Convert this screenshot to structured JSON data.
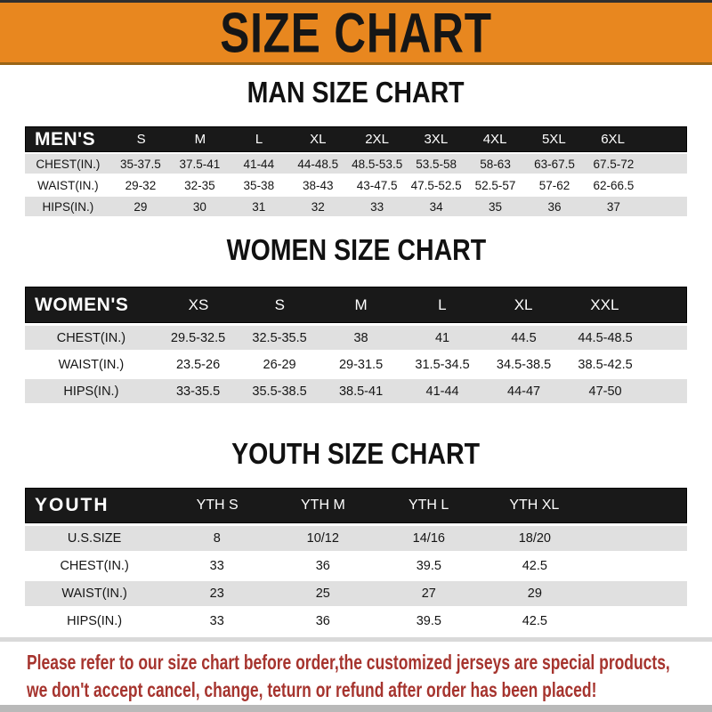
{
  "banner": {
    "title": "SIZE CHART"
  },
  "colors": {
    "banner_orange": "#E8871F",
    "table_bar_black": "#191919",
    "row_gray": "#E0E0E0",
    "footer_red": "#A6342E"
  },
  "men": {
    "title": "MAN SIZE CHART",
    "header": "MEN'S",
    "cols": [
      "S",
      "M",
      "L",
      "XL",
      "2XL",
      "3XL",
      "4XL",
      "5XL",
      "6XL"
    ],
    "chest": {
      "label": "CHEST(IN.)",
      "v": [
        "35-37.5",
        "37.5-41",
        "41-44",
        "44-48.5",
        "48.5-53.5",
        "53.5-58",
        "58-63",
        "63-67.5",
        "67.5-72"
      ]
    },
    "waist": {
      "label": "WAIST(IN.)",
      "v": [
        "29-32",
        "32-35",
        "35-38",
        "38-43",
        "43-47.5",
        "47.5-52.5",
        "52.5-57",
        "57-62",
        "62-66.5"
      ]
    },
    "hips": {
      "label": "HIPS(IN.)",
      "v": [
        "29",
        "30",
        "31",
        "32",
        "33",
        "34",
        "35",
        "36",
        "37"
      ]
    }
  },
  "women": {
    "title": "WOMEN SIZE CHART",
    "header": "WOMEN'S",
    "cols": [
      "XS",
      "S",
      "M",
      "L",
      "XL",
      "XXL"
    ],
    "chest": {
      "label": "CHEST(IN.)",
      "v": [
        "29.5-32.5",
        "32.5-35.5",
        "38",
        "41",
        "44.5",
        "44.5-48.5"
      ]
    },
    "waist": {
      "label": "WAIST(IN.)",
      "v": [
        "23.5-26",
        "26-29",
        "29-31.5",
        "31.5-34.5",
        "34.5-38.5",
        "38.5-42.5"
      ]
    },
    "hips": {
      "label": "HIPS(IN.)",
      "v": [
        "33-35.5",
        "35.5-38.5",
        "38.5-41",
        "41-44",
        "44-47",
        "47-50"
      ]
    }
  },
  "youth": {
    "title": "YOUTH SIZE CHART",
    "header": "YOUTH",
    "cols": [
      "YTH S",
      "YTH M",
      "YTH L",
      "YTH XL"
    ],
    "ussize": {
      "label": "U.S.SIZE",
      "v": [
        "8",
        "10/12",
        "14/16",
        "18/20"
      ]
    },
    "chest": {
      "label": "CHEST(IN.)",
      "v": [
        "33",
        "36",
        "39.5",
        "42.5"
      ]
    },
    "waist": {
      "label": "WAIST(IN.)",
      "v": [
        "23",
        "25",
        "27",
        "29"
      ]
    },
    "hips": {
      "label": "HIPS(IN.)",
      "v": [
        "33",
        "36",
        "39.5",
        "42.5"
      ]
    }
  },
  "footer": {
    "line1": "Please refer to our size chart before order,the customized jerseys are special products,",
    "line2": "we don't accept cancel, change, teturn or refund after order has been placed!"
  }
}
